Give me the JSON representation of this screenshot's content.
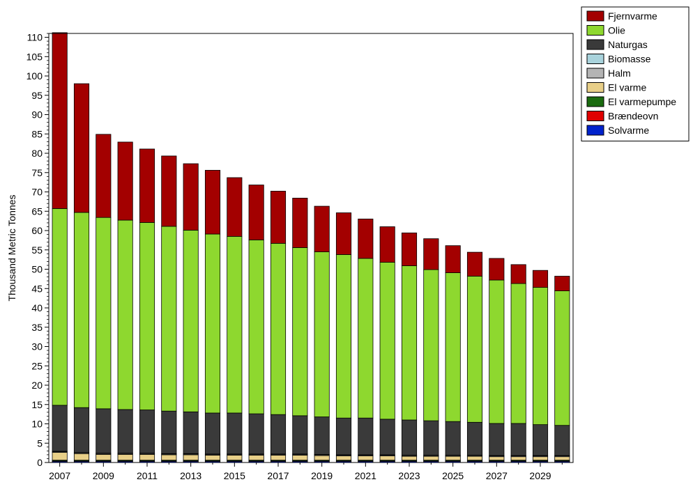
{
  "chart_data": {
    "type": "bar",
    "stacked": true,
    "title": "",
    "xlabel": "",
    "ylabel": "Thousand Metric Tonnes",
    "ylim": [
      0,
      111
    ],
    "yticks": [
      0,
      5,
      10,
      15,
      20,
      25,
      30,
      35,
      40,
      45,
      50,
      55,
      60,
      65,
      70,
      75,
      80,
      85,
      90,
      95,
      100,
      105,
      110
    ],
    "xtick_labels": [
      "2007",
      "2009",
      "2011",
      "2013",
      "2015",
      "2017",
      "2019",
      "2021",
      "2023",
      "2025",
      "2027",
      "2029"
    ],
    "grid": false,
    "legend_position": "top-right",
    "categories": [
      "2007",
      "2008",
      "2009",
      "2010",
      "2011",
      "2012",
      "2013",
      "2014",
      "2015",
      "2016",
      "2017",
      "2018",
      "2019",
      "2020",
      "2021",
      "2022",
      "2023",
      "2024",
      "2025",
      "2026",
      "2027",
      "2028",
      "2029",
      "2030"
    ],
    "series": [
      {
        "name": "Solvarme",
        "color": "#0022cc",
        "values": [
          0.3,
          0.3,
          0.3,
          0.3,
          0.3,
          0.3,
          0.3,
          0.3,
          0.3,
          0.3,
          0.3,
          0.3,
          0.3,
          0.3,
          0.3,
          0.3,
          0.3,
          0.3,
          0.3,
          0.3,
          0.3,
          0.3,
          0.3,
          0.3
        ]
      },
      {
        "name": "Brændeovn",
        "color": "#e00000",
        "values": [
          0.1,
          0.1,
          0.1,
          0.1,
          0.1,
          0.1,
          0.1,
          0.1,
          0.1,
          0.1,
          0.1,
          0.1,
          0.1,
          0.1,
          0.1,
          0.1,
          0.1,
          0.1,
          0.1,
          0.1,
          0.1,
          0.1,
          0.1,
          0.1
        ]
      },
      {
        "name": "El varmepumpe",
        "color": "#1a6b0f",
        "values": [
          0.2,
          0.2,
          0.2,
          0.2,
          0.2,
          0.2,
          0.2,
          0.2,
          0.2,
          0.2,
          0.2,
          0.2,
          0.2,
          0.2,
          0.2,
          0.2,
          0.2,
          0.2,
          0.2,
          0.2,
          0.2,
          0.2,
          0.2,
          0.2
        ]
      },
      {
        "name": "El varme",
        "color": "#e8cf88",
        "values": [
          2.0,
          1.7,
          1.5,
          1.5,
          1.5,
          1.4,
          1.4,
          1.3,
          1.3,
          1.3,
          1.3,
          1.3,
          1.2,
          1.1,
          1.1,
          1.1,
          1.0,
          1.0,
          1.0,
          1.0,
          0.9,
          0.9,
          0.9,
          0.9
        ]
      },
      {
        "name": "Halm",
        "color": "#b4b4b4",
        "values": [
          0.2,
          0.2,
          0.2,
          0.2,
          0.2,
          0.2,
          0.2,
          0.2,
          0.2,
          0.2,
          0.2,
          0.2,
          0.2,
          0.2,
          0.2,
          0.2,
          0.2,
          0.2,
          0.2,
          0.2,
          0.2,
          0.2,
          0.2,
          0.2
        ]
      },
      {
        "name": "Biomasse",
        "color": "#a9d3dc",
        "values": [
          0.1,
          0.1,
          0.1,
          0.1,
          0.1,
          0.1,
          0.1,
          0.1,
          0.1,
          0.1,
          0.1,
          0.1,
          0.1,
          0.1,
          0.1,
          0.1,
          0.1,
          0.1,
          0.1,
          0.1,
          0.1,
          0.1,
          0.1,
          0.1
        ]
      },
      {
        "name": "Naturgas",
        "color": "#3a3a3a",
        "values": [
          11.9,
          11.6,
          11.5,
          11.3,
          11.2,
          11.0,
          10.8,
          10.6,
          10.6,
          10.4,
          10.2,
          9.9,
          9.7,
          9.5,
          9.5,
          9.2,
          9.1,
          8.9,
          8.7,
          8.5,
          8.3,
          8.3,
          8.0,
          7.8
        ]
      },
      {
        "name": "Olie",
        "color": "#8ed82f",
        "values": [
          50.9,
          50.5,
          49.5,
          49.0,
          48.5,
          47.8,
          47.0,
          46.3,
          45.7,
          45.0,
          44.3,
          43.5,
          42.7,
          42.3,
          41.3,
          40.6,
          39.9,
          39.1,
          38.5,
          37.8,
          37.1,
          36.2,
          35.5,
          34.8
        ]
      },
      {
        "name": "Fjernvarme",
        "color": "#a30000",
        "values": [
          45.5,
          33.3,
          21.5,
          20.2,
          19.0,
          18.2,
          17.2,
          16.5,
          15.2,
          14.2,
          13.5,
          12.8,
          11.8,
          10.8,
          10.2,
          9.2,
          8.5,
          8.0,
          7.0,
          6.2,
          5.6,
          4.9,
          4.4,
          3.8
        ]
      }
    ],
    "legend_order": [
      "Fjernvarme",
      "Olie",
      "Naturgas",
      "Biomasse",
      "Halm",
      "El varme",
      "El varmepumpe",
      "Brændeovn",
      "Solvarme"
    ]
  }
}
